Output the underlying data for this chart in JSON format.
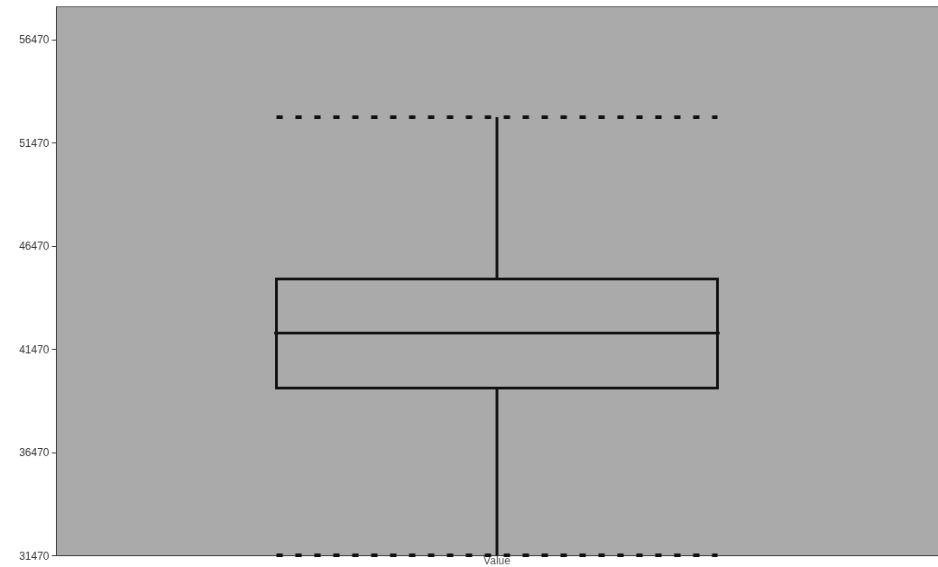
{
  "chart_data": {
    "type": "box",
    "categories": [
      "Value"
    ],
    "boxes": [
      {
        "low": 31470,
        "q1": 39580,
        "median": 42240,
        "q3": 44860,
        "high": 52710
      }
    ],
    "ylim": [
      31470,
      58080
    ],
    "yticks": [
      31470,
      36470,
      41470,
      46470,
      51470,
      56470
    ],
    "grid": false
  }
}
